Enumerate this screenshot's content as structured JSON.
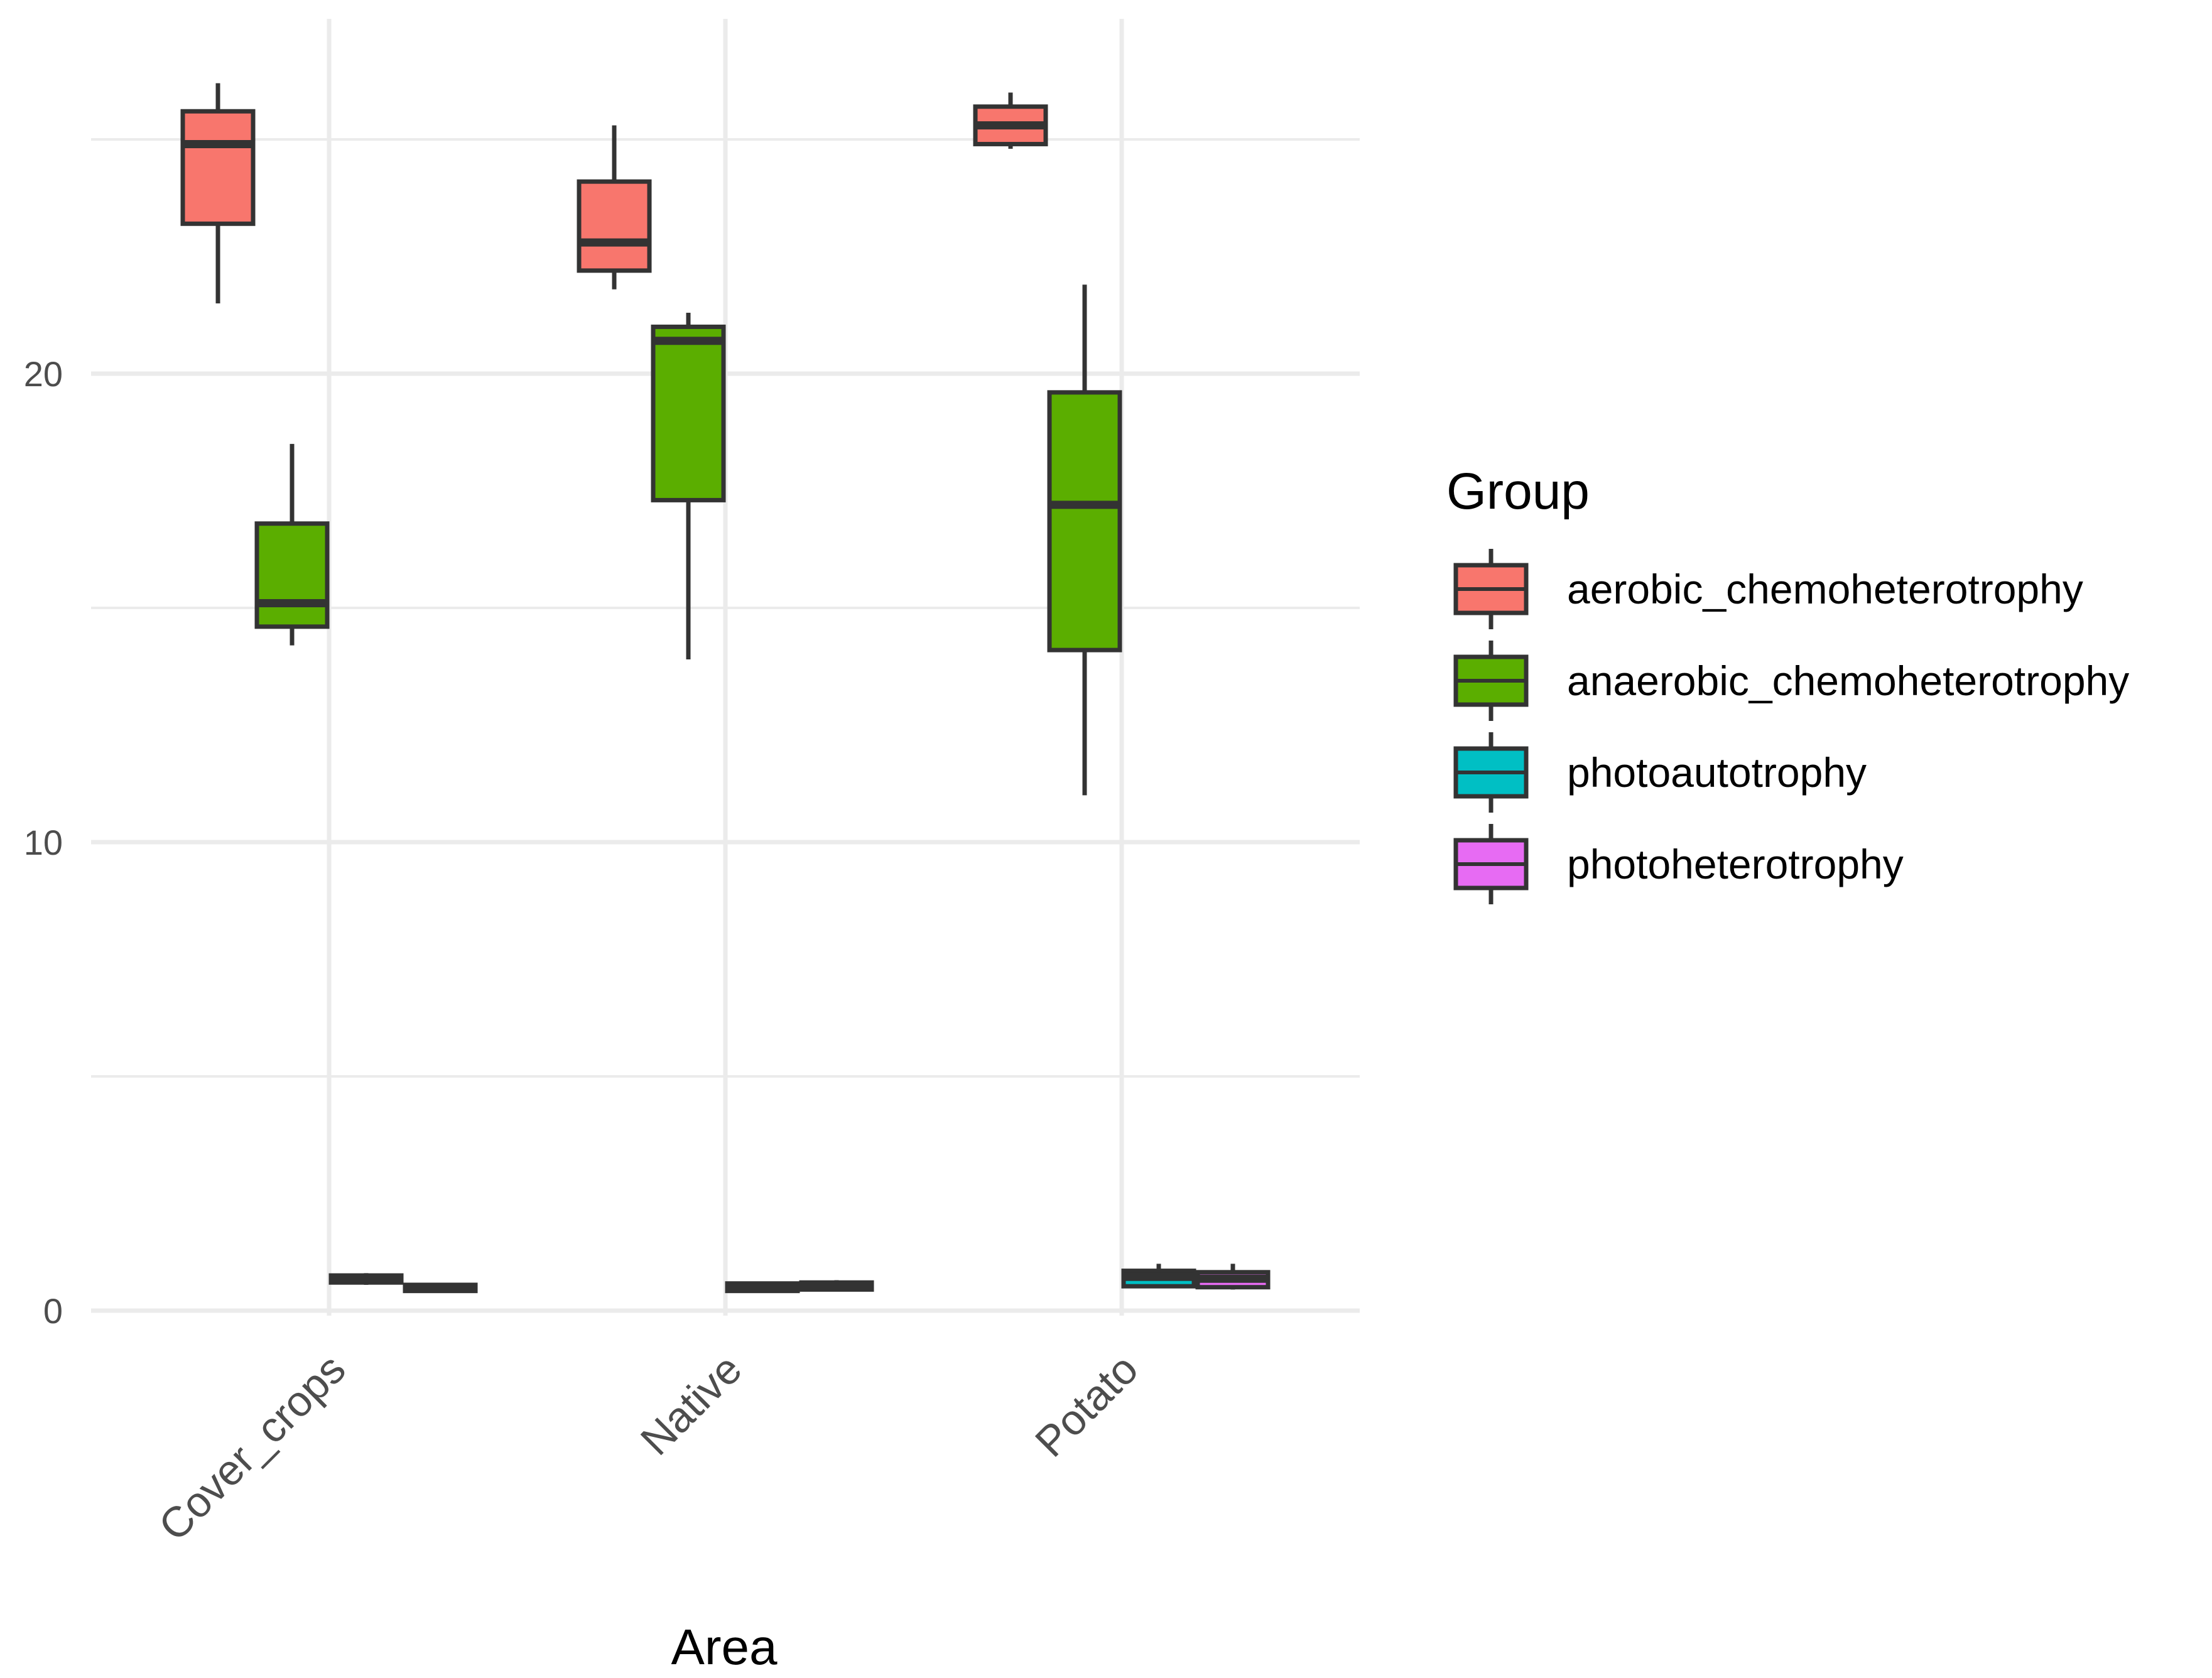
{
  "chart_data": {
    "type": "boxplot",
    "title": "",
    "xlabel": "Area",
    "ylabel": "",
    "ylim": [
      -0.5,
      27.5
    ],
    "yticks": [
      0,
      10,
      20
    ],
    "grid": true,
    "categories": [
      "Cover_crops",
      "Native",
      "Potato"
    ],
    "legend": {
      "title": "Group",
      "position": "right"
    },
    "series": [
      {
        "name": "aerobic_chemoheterotrophy",
        "color": "#F8766D",
        "boxes": [
          {
            "category": "Cover_crops",
            "min": 21.5,
            "q1": 23.2,
            "median": 24.9,
            "q3": 25.6,
            "max": 26.2
          },
          {
            "category": "Native",
            "min": 21.8,
            "q1": 22.2,
            "median": 22.8,
            "q3": 24.1,
            "max": 25.3
          },
          {
            "category": "Potato",
            "min": 24.8,
            "q1": 24.9,
            "median": 25.3,
            "q3": 25.7,
            "max": 26.0
          }
        ]
      },
      {
        "name": "anaerobic_chemoheterotrophy",
        "color": "#5BAE00",
        "boxes": [
          {
            "category": "Cover_crops",
            "min": 14.2,
            "q1": 14.6,
            "median": 15.1,
            "q3": 16.8,
            "max": 18.5
          },
          {
            "category": "Native",
            "min": 13.9,
            "q1": 17.3,
            "median": 20.7,
            "q3": 21.0,
            "max": 21.3
          },
          {
            "category": "Potato",
            "min": 11.0,
            "q1": 14.1,
            "median": 17.2,
            "q3": 19.6,
            "max": 21.9
          }
        ]
      },
      {
        "name": "photoautotrophy",
        "color": "#00BFC4",
        "boxes": [
          {
            "category": "Cover_crops",
            "min": 0.55,
            "q1": 0.6,
            "median": 0.68,
            "q3": 0.75,
            "max": 0.8
          },
          {
            "category": "Native",
            "min": 0.4,
            "q1": 0.42,
            "median": 0.5,
            "q3": 0.58,
            "max": 0.62
          },
          {
            "category": "Potato",
            "min": 0.5,
            "q1": 0.52,
            "median": 0.72,
            "q3": 0.85,
            "max": 1.0
          }
        ]
      },
      {
        "name": "photoheterotrophy",
        "color": "#E76BF3",
        "boxes": [
          {
            "category": "Cover_crops",
            "min": 0.4,
            "q1": 0.42,
            "median": 0.48,
            "q3": 0.55,
            "max": 0.58
          },
          {
            "category": "Native",
            "min": 0.42,
            "q1": 0.45,
            "median": 0.52,
            "q3": 0.6,
            "max": 0.65
          },
          {
            "category": "Potato",
            "min": 0.45,
            "q1": 0.5,
            "median": 0.68,
            "q3": 0.82,
            "max": 1.0
          }
        ]
      }
    ]
  }
}
